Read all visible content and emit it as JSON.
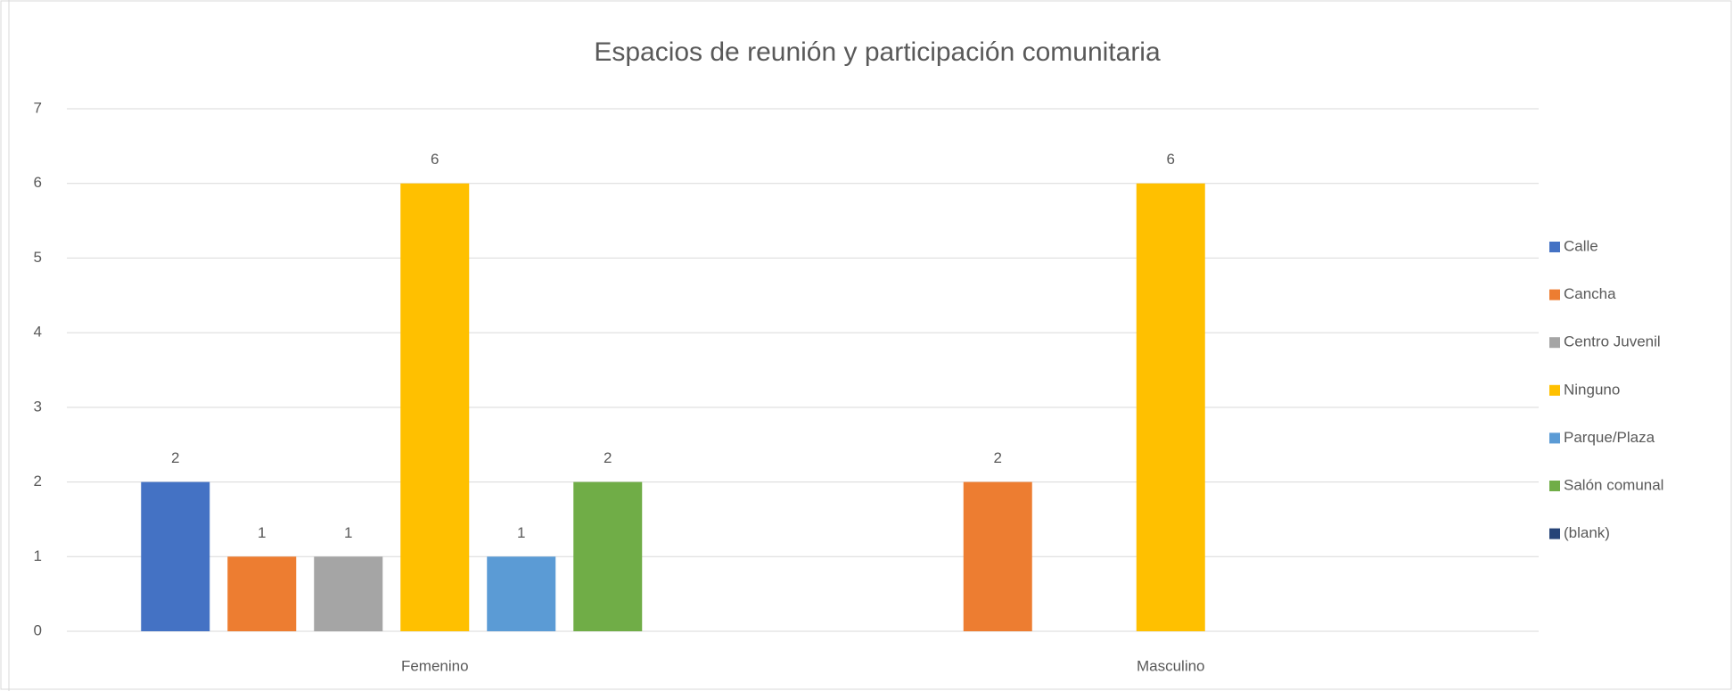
{
  "chart_data": {
    "type": "bar",
    "title": "Espacios de reunión y participación comunitaria",
    "categories": [
      "Femenino",
      "Masculino"
    ],
    "series": [
      {
        "name": "Calle",
        "color": "#4472c4",
        "values": [
          2,
          null
        ]
      },
      {
        "name": "Cancha",
        "color": "#ed7d31",
        "values": [
          1,
          2
        ]
      },
      {
        "name": "Centro Juvenil",
        "color": "#a5a5a5",
        "values": [
          1,
          null
        ]
      },
      {
        "name": "Ninguno",
        "color": "#ffc000",
        "values": [
          6,
          6
        ]
      },
      {
        "name": "Parque/Plaza",
        "color": "#5b9bd5",
        "values": [
          1,
          null
        ]
      },
      {
        "name": "Salón comunal",
        "color": "#70ad47",
        "values": [
          2,
          null
        ]
      },
      {
        "name": "(blank)",
        "color": "#264478",
        "values": [
          null,
          null
        ]
      }
    ],
    "ylim": [
      0,
      7
    ],
    "yticks": [
      0,
      1,
      2,
      3,
      4,
      5,
      6,
      7
    ],
    "grid": true,
    "legend": "right"
  }
}
